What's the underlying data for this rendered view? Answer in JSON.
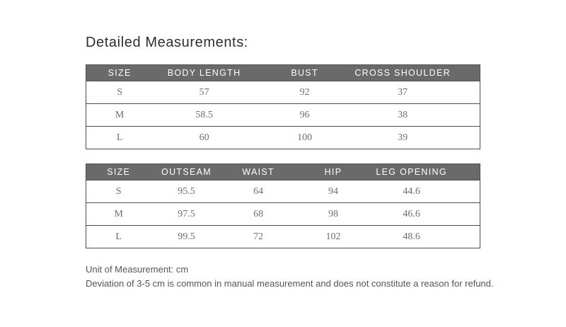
{
  "title": "Detailed Measurements:",
  "tables": [
    {
      "name": "top-garment-size-chart",
      "headers": [
        "SIZE",
        "BODY LENGTH",
        "BUST",
        "CROSS SHOULDER"
      ],
      "rows": [
        [
          "S",
          "57",
          "92",
          "37"
        ],
        [
          "M",
          "58.5",
          "96",
          "38"
        ],
        [
          "L",
          "60",
          "100",
          "39"
        ]
      ]
    },
    {
      "name": "bottom-garment-size-chart",
      "headers": [
        "SIZE",
        "OUTSEAM",
        "WAIST",
        "HIP",
        "LEG OPENING"
      ],
      "rows": [
        [
          "S",
          "95.5",
          "64",
          "94",
          "44.6"
        ],
        [
          "M",
          "97.5",
          "68",
          "98",
          "46.6"
        ],
        [
          "L",
          "99.5",
          "72",
          "102",
          "48.6"
        ]
      ]
    }
  ],
  "notes": {
    "unit": "Unit of Measurement: cm",
    "deviation": "Deviation of 3-5 cm is common in manual measurement and does not constitute a reason for refund."
  },
  "colors": {
    "page_bg": "#ffffff",
    "header_bg": "#6a6a6a",
    "header_text": "#ffffff",
    "border": "#4f4f4f",
    "cell_text": "#6e6e6e",
    "title_text": "#2e2e2e",
    "note_text": "#555555"
  }
}
